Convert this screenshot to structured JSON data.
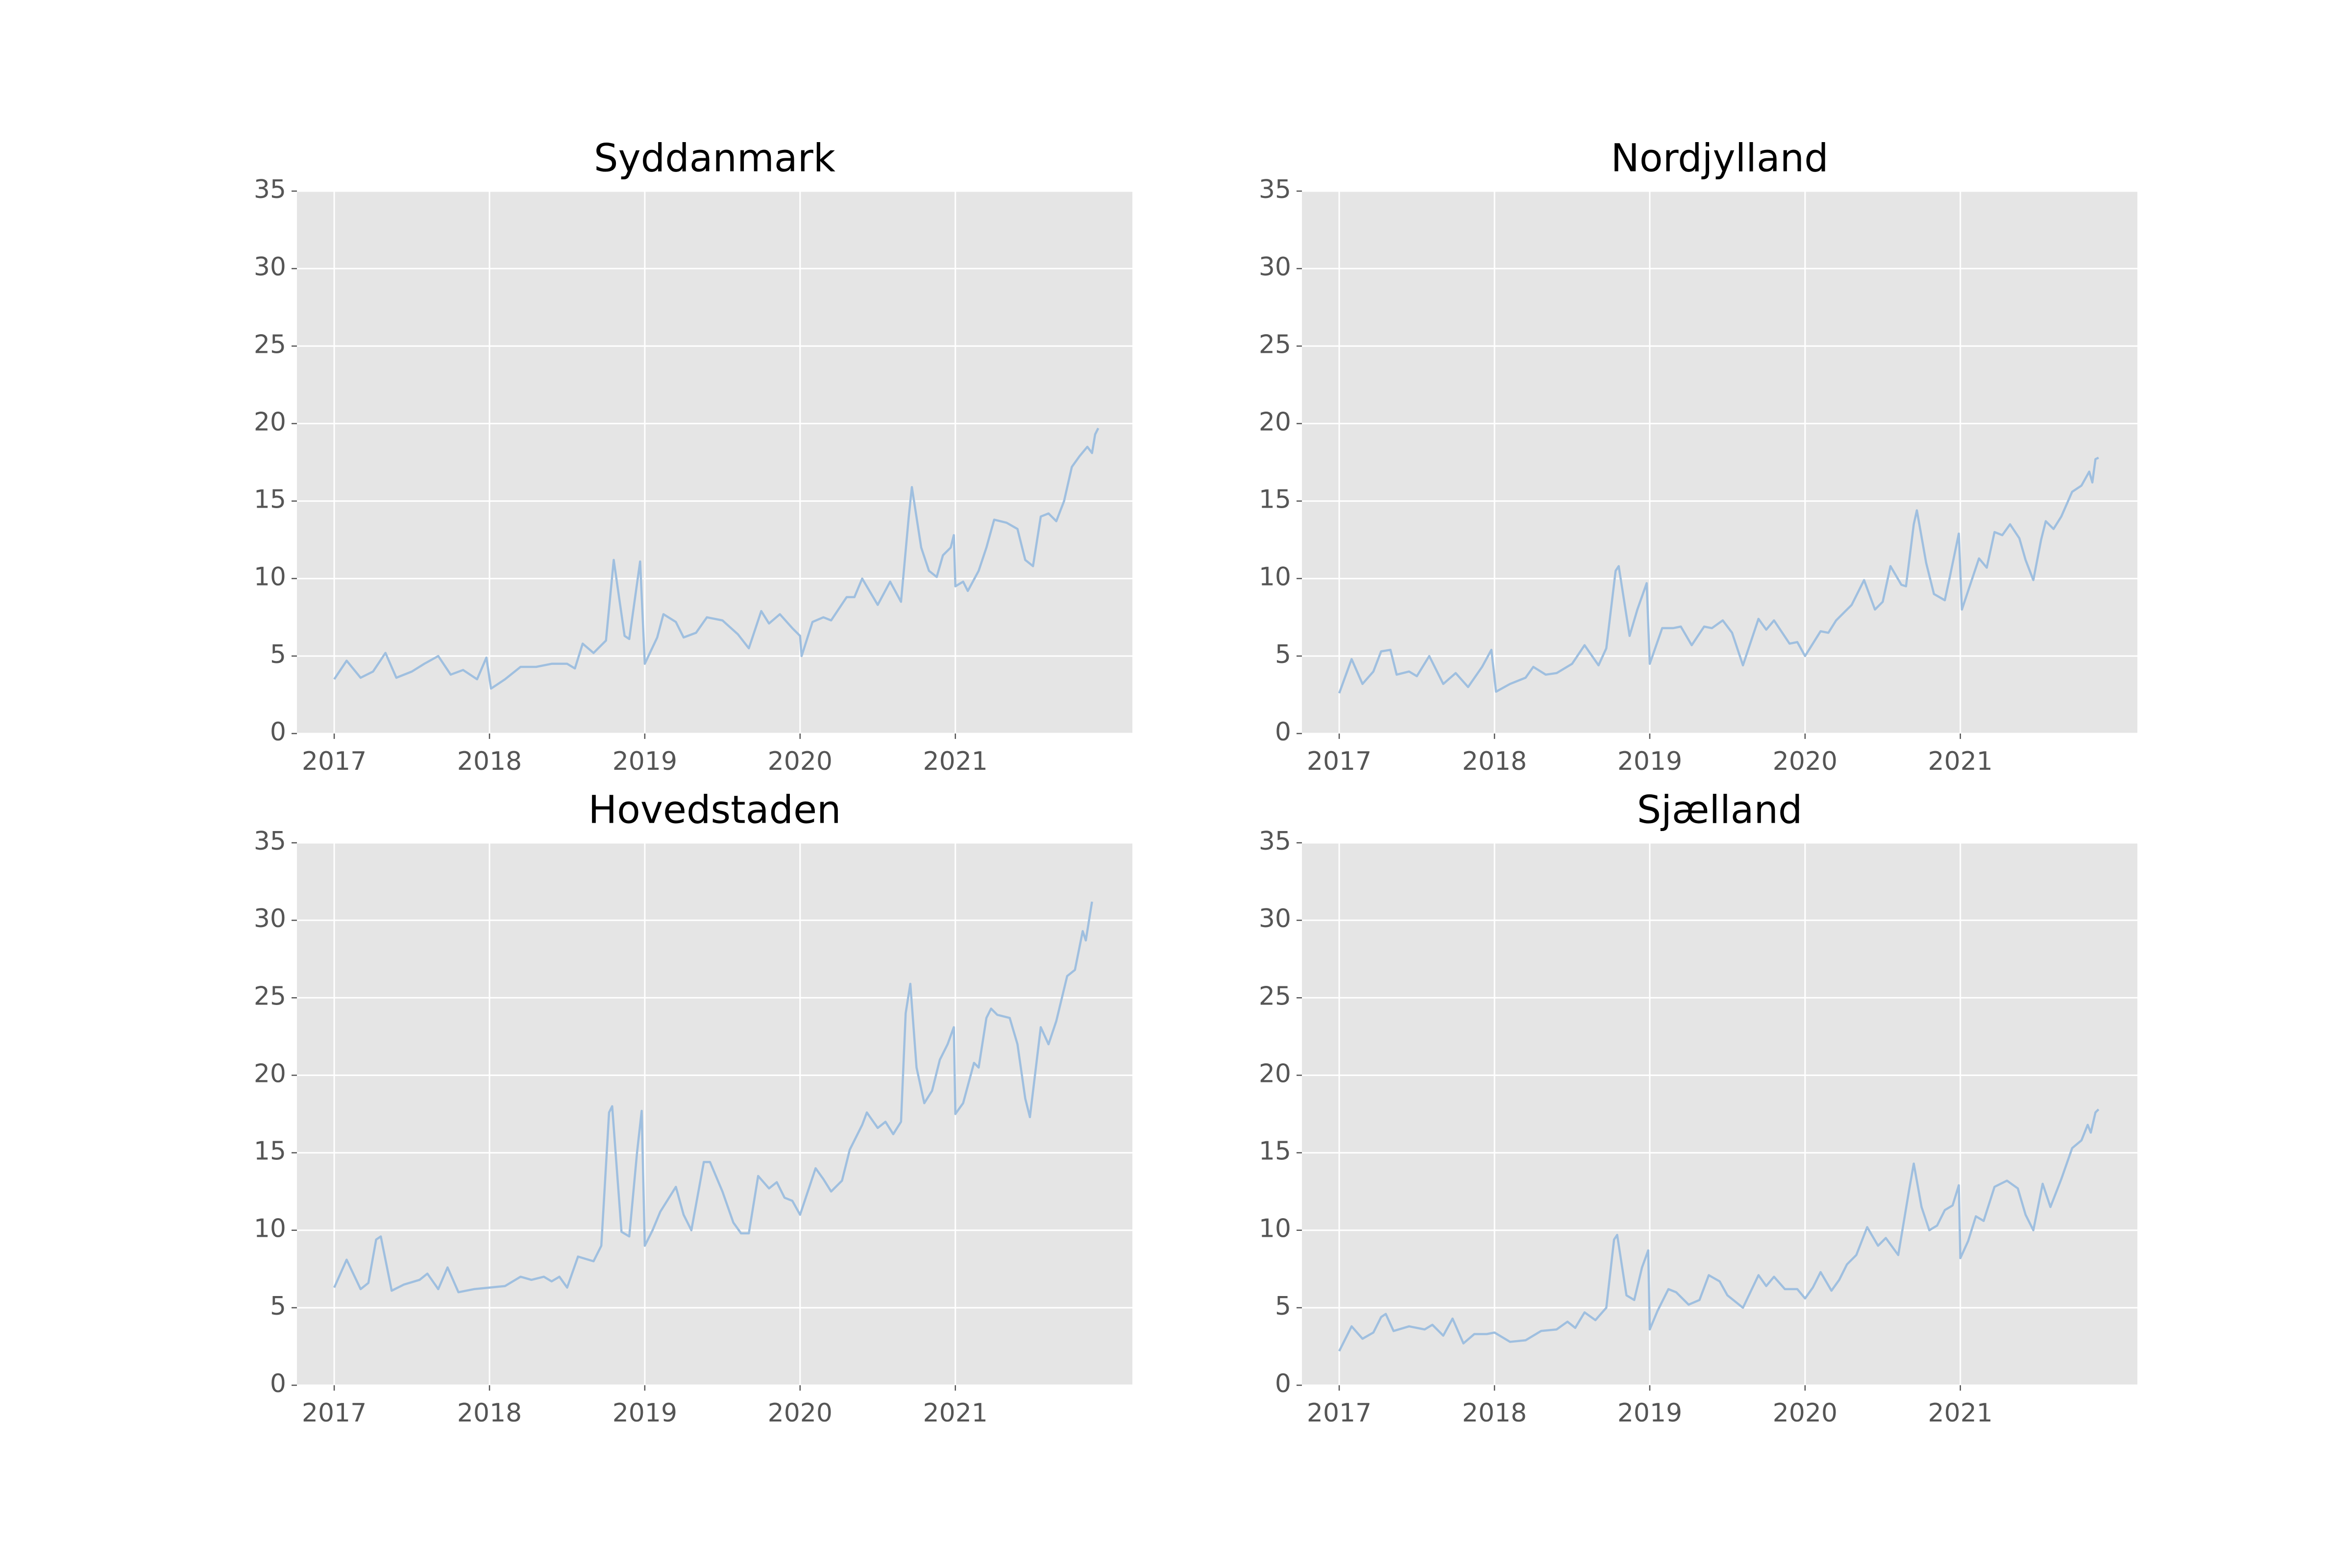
{
  "chart_data": [
    {
      "type": "line",
      "title": "Syddanmark",
      "color": "#9fbfdf",
      "grid": true,
      "xlim": [
        2016.76,
        2022.14
      ],
      "ylim": [
        0,
        35
      ],
      "xticks": [
        2017,
        2018,
        2019,
        2020,
        2021
      ],
      "yticks": [
        0,
        5,
        10,
        15,
        20,
        25,
        30,
        35
      ],
      "x": [
        2017.0,
        2017.08,
        2017.17,
        2017.25,
        2017.33,
        2017.4,
        2017.5,
        2017.58,
        2017.67,
        2017.75,
        2017.83,
        2017.92,
        2017.98,
        2018.01,
        2018.1,
        2018.2,
        2018.3,
        2018.4,
        2018.5,
        2018.55,
        2018.6,
        2018.67,
        2018.75,
        2018.8,
        2018.87,
        2018.9,
        2018.97,
        2019.0,
        2019.08,
        2019.12,
        2019.2,
        2019.25,
        2019.33,
        2019.4,
        2019.5,
        2019.6,
        2019.67,
        2019.75,
        2019.8,
        2019.87,
        2019.95,
        2020.0,
        2020.01,
        2020.08,
        2020.15,
        2020.2,
        2020.3,
        2020.35,
        2020.4,
        2020.5,
        2020.58,
        2020.65,
        2020.7,
        2020.72,
        2020.78,
        2020.83,
        2020.88,
        2020.92,
        2020.97,
        2020.99,
        2021.0,
        2021.05,
        2021.08,
        2021.15,
        2021.2,
        2021.25,
        2021.33,
        2021.4,
        2021.45,
        2021.5,
        2021.55,
        2021.6,
        2021.65,
        2021.7,
        2021.75,
        2021.8,
        2021.85,
        2021.88,
        2021.9,
        2021.92
      ],
      "values": [
        3.5,
        4.7,
        3.6,
        4.0,
        5.2,
        3.6,
        4.0,
        4.5,
        5.0,
        3.8,
        4.1,
        3.5,
        4.9,
        2.9,
        3.5,
        4.3,
        4.3,
        4.5,
        4.5,
        4.2,
        5.8,
        5.2,
        6.0,
        11.2,
        6.3,
        6.1,
        11.1,
        4.5,
        6.2,
        7.7,
        7.2,
        6.2,
        6.5,
        7.5,
        7.3,
        6.4,
        5.5,
        7.9,
        7.1,
        7.7,
        6.8,
        6.3,
        5.0,
        7.2,
        7.5,
        7.3,
        8.8,
        8.8,
        10.0,
        8.3,
        9.8,
        8.5,
        14.0,
        15.9,
        12.0,
        10.5,
        10.1,
        11.5,
        12.0,
        12.8,
        9.5,
        9.8,
        9.2,
        10.5,
        12.0,
        13.8,
        13.6,
        13.2,
        11.2,
        10.8,
        14.0,
        14.2,
        13.7,
        15.0,
        17.2,
        17.9,
        18.5,
        18.1,
        19.3,
        19.7
      ]
    },
    {
      "type": "line",
      "title": "Nordjylland",
      "color": "#9fbfdf",
      "grid": true,
      "xlim": [
        2016.76,
        2022.14
      ],
      "ylim": [
        0,
        35
      ],
      "xticks": [
        2017,
        2018,
        2019,
        2020,
        2021
      ],
      "yticks": [
        0,
        5,
        10,
        15,
        20,
        25,
        30,
        35
      ],
      "x": [
        2017.0,
        2017.08,
        2017.15,
        2017.22,
        2017.27,
        2017.33,
        2017.37,
        2017.45,
        2017.5,
        2017.58,
        2017.67,
        2017.75,
        2017.83,
        2017.92,
        2017.98,
        2018.01,
        2018.1,
        2018.2,
        2018.25,
        2018.33,
        2018.4,
        2018.5,
        2018.58,
        2018.67,
        2018.72,
        2018.78,
        2018.8,
        2018.87,
        2018.92,
        2018.98,
        2019.0,
        2019.08,
        2019.15,
        2019.2,
        2019.27,
        2019.35,
        2019.4,
        2019.47,
        2019.53,
        2019.6,
        2019.7,
        2019.75,
        2019.8,
        2019.9,
        2019.95,
        2020.0,
        2020.1,
        2020.15,
        2020.2,
        2020.3,
        2020.38,
        2020.45,
        2020.5,
        2020.55,
        2020.62,
        2020.65,
        2020.7,
        2020.72,
        2020.78,
        2020.83,
        2020.9,
        2020.93,
        2020.99,
        2021.01,
        2021.05,
        2021.12,
        2021.17,
        2021.22,
        2021.27,
        2021.32,
        2021.38,
        2021.42,
        2021.47,
        2021.52,
        2021.55,
        2021.6,
        2021.65,
        2021.72,
        2021.78,
        2021.83,
        2021.85,
        2021.87,
        2021.89
      ],
      "values": [
        2.6,
        4.8,
        3.2,
        4.0,
        5.3,
        5.4,
        3.8,
        4.0,
        3.7,
        5.0,
        3.2,
        3.9,
        3.0,
        4.3,
        5.4,
        2.7,
        3.2,
        3.6,
        4.3,
        3.8,
        3.9,
        4.5,
        5.7,
        4.4,
        5.5,
        10.5,
        10.8,
        6.3,
        8.0,
        9.7,
        4.5,
        6.8,
        6.8,
        6.9,
        5.7,
        6.9,
        6.8,
        7.3,
        6.5,
        4.4,
        7.4,
        6.7,
        7.3,
        5.8,
        5.9,
        5.0,
        6.6,
        6.5,
        7.3,
        8.3,
        9.9,
        8.0,
        8.5,
        10.8,
        9.6,
        9.5,
        13.5,
        14.4,
        11.0,
        9.0,
        8.6,
        10.0,
        12.9,
        8.0,
        9.2,
        11.3,
        10.7,
        13.0,
        12.8,
        13.5,
        12.6,
        11.2,
        9.9,
        12.5,
        13.7,
        13.2,
        14.0,
        15.6,
        16.0,
        16.9,
        16.2,
        17.7,
        17.8
      ]
    },
    {
      "type": "line",
      "title": "Hovedstaden",
      "color": "#9fbfdf",
      "grid": true,
      "xlim": [
        2016.76,
        2022.14
      ],
      "ylim": [
        0,
        35
      ],
      "xticks": [
        2017,
        2018,
        2019,
        2020,
        2021
      ],
      "yticks": [
        0,
        5,
        10,
        15,
        20,
        25,
        30,
        35
      ],
      "x": [
        2017.0,
        2017.08,
        2017.17,
        2017.22,
        2017.27,
        2017.3,
        2017.37,
        2017.45,
        2017.55,
        2017.6,
        2017.67,
        2017.73,
        2017.8,
        2017.9,
        2018.0,
        2018.1,
        2018.2,
        2018.27,
        2018.35,
        2018.4,
        2018.45,
        2018.5,
        2018.57,
        2018.67,
        2018.72,
        2018.77,
        2018.79,
        2018.85,
        2018.9,
        2018.95,
        2018.98,
        2019.0,
        2019.05,
        2019.1,
        2019.2,
        2019.25,
        2019.3,
        2019.38,
        2019.42,
        2019.5,
        2019.57,
        2019.62,
        2019.67,
        2019.73,
        2019.8,
        2019.85,
        2019.9,
        2019.95,
        2020.0,
        2020.05,
        2020.1,
        2020.15,
        2020.2,
        2020.27,
        2020.32,
        2020.4,
        2020.43,
        2020.5,
        2020.55,
        2020.6,
        2020.65,
        2020.68,
        2020.71,
        2020.75,
        2020.8,
        2020.85,
        2020.9,
        2020.95,
        2020.99,
        2021.0,
        2021.05,
        2021.12,
        2021.15,
        2021.2,
        2021.23,
        2021.27,
        2021.35,
        2021.4,
        2021.45,
        2021.48,
        2021.55,
        2021.6,
        2021.65,
        2021.72,
        2021.77,
        2021.82,
        2021.84,
        2021.88
      ],
      "values": [
        6.3,
        8.1,
        6.2,
        6.6,
        9.4,
        9.6,
        6.1,
        6.5,
        6.8,
        7.2,
        6.2,
        7.6,
        6.0,
        6.2,
        6.3,
        6.4,
        7.0,
        6.8,
        7.0,
        6.7,
        7.0,
        6.3,
        8.3,
        8.0,
        9.0,
        17.6,
        18.0,
        9.9,
        9.6,
        15.0,
        17.7,
        9.0,
        10.0,
        11.2,
        12.8,
        11.0,
        10.0,
        14.4,
        14.4,
        12.5,
        10.5,
        9.8,
        9.8,
        13.5,
        12.7,
        13.1,
        12.1,
        11.9,
        11.0,
        12.5,
        14.0,
        13.3,
        12.5,
        13.2,
        15.2,
        16.8,
        17.6,
        16.6,
        17.0,
        16.2,
        17.0,
        24.0,
        25.9,
        20.5,
        18.2,
        19.0,
        21.0,
        22.0,
        23.1,
        17.5,
        18.2,
        20.8,
        20.5,
        23.7,
        24.3,
        23.9,
        23.7,
        22.0,
        18.5,
        17.3,
        23.1,
        22.0,
        23.5,
        26.4,
        26.8,
        29.3,
        28.7,
        31.2
      ]
    },
    {
      "type": "line",
      "title": "Sjælland",
      "color": "#9fbfdf",
      "grid": true,
      "xlim": [
        2016.76,
        2022.14
      ],
      "ylim": [
        0,
        35
      ],
      "xticks": [
        2017,
        2018,
        2019,
        2020,
        2021
      ],
      "yticks": [
        0,
        5,
        10,
        15,
        20,
        25,
        30,
        35
      ],
      "x": [
        2017.0,
        2017.08,
        2017.15,
        2017.22,
        2017.27,
        2017.3,
        2017.35,
        2017.45,
        2017.55,
        2017.6,
        2017.67,
        2017.73,
        2017.8,
        2017.87,
        2017.95,
        2018.0,
        2018.1,
        2018.2,
        2018.3,
        2018.4,
        2018.47,
        2018.52,
        2018.58,
        2018.65,
        2018.72,
        2018.77,
        2018.79,
        2018.85,
        2018.9,
        2018.95,
        2018.99,
        2019.0,
        2019.05,
        2019.12,
        2019.17,
        2019.25,
        2019.32,
        2019.38,
        2019.45,
        2019.5,
        2019.6,
        2019.7,
        2019.75,
        2019.8,
        2019.87,
        2019.95,
        2020.0,
        2020.05,
        2020.1,
        2020.17,
        2020.22,
        2020.27,
        2020.33,
        2020.4,
        2020.47,
        2020.52,
        2020.6,
        2020.67,
        2020.7,
        2020.75,
        2020.8,
        2020.85,
        2020.9,
        2020.95,
        2020.99,
        2021.0,
        2021.05,
        2021.1,
        2021.15,
        2021.22,
        2021.3,
        2021.37,
        2021.42,
        2021.47,
        2021.53,
        2021.58,
        2021.65,
        2021.72,
        2021.78,
        2021.82,
        2021.84,
        2021.87,
        2021.89
      ],
      "values": [
        2.2,
        3.8,
        3.0,
        3.4,
        4.4,
        4.6,
        3.5,
        3.8,
        3.6,
        3.9,
        3.2,
        4.3,
        2.7,
        3.3,
        3.3,
        3.4,
        2.8,
        2.9,
        3.5,
        3.6,
        4.1,
        3.7,
        4.7,
        4.2,
        5.0,
        9.4,
        9.7,
        5.8,
        5.5,
        7.6,
        8.7,
        3.6,
        4.8,
        6.2,
        6.0,
        5.2,
        5.5,
        7.1,
        6.7,
        5.8,
        5.0,
        7.1,
        6.4,
        7.0,
        6.2,
        6.2,
        5.6,
        6.3,
        7.3,
        6.1,
        6.8,
        7.8,
        8.4,
        10.2,
        9.0,
        9.5,
        8.4,
        12.6,
        14.3,
        11.5,
        10.0,
        10.3,
        11.3,
        11.6,
        12.9,
        8.2,
        9.3,
        10.9,
        10.6,
        12.8,
        13.2,
        12.7,
        11.0,
        10.0,
        13.0,
        11.5,
        13.3,
        15.3,
        15.8,
        16.8,
        16.3,
        17.6,
        17.8
      ]
    }
  ]
}
